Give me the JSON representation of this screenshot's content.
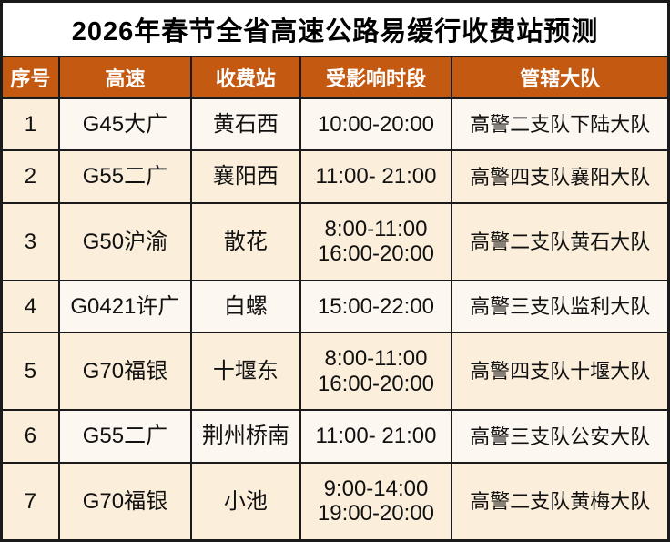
{
  "title": "2026年春节全省高速公路易缓行收费站预测",
  "colors": {
    "header_bg": "#C45911",
    "header_fg": "#FFFFFF",
    "row_cream": "#FBEEDA",
    "row_light": "#FDF7F1",
    "border": "#1A1A1A"
  },
  "table": {
    "headers": {
      "no": "序号",
      "highway": "高速",
      "station": "收费站",
      "time": "受影响时段",
      "brigade": "管辖大队"
    },
    "rows": [
      {
        "no": "1",
        "highway": "G45大广",
        "station": "黄石西",
        "time_lines": [
          "10:00-20:00"
        ],
        "brigade": "高警二支队下陆大队",
        "shade": "light"
      },
      {
        "no": "2",
        "highway": "G55二广",
        "station": "襄阳西",
        "time_lines": [
          "11:00- 21:00"
        ],
        "brigade": "高警四支队襄阳大队",
        "shade": "cream"
      },
      {
        "no": "3",
        "highway": "G50沪渝",
        "station": "散花",
        "time_lines": [
          "8:00-11:00",
          "16:00-20:00"
        ],
        "brigade": "高警二支队黄石大队",
        "shade": "cream"
      },
      {
        "no": "4",
        "highway": "G0421许广",
        "station": "白螺",
        "time_lines": [
          "15:00-22:00"
        ],
        "brigade": "高警三支队监利大队",
        "shade": "light"
      },
      {
        "no": "5",
        "highway": "G70福银",
        "station": "十堰东",
        "time_lines": [
          "8:00-11:00",
          "16:00-20:00"
        ],
        "brigade": "高警四支队十堰大队",
        "shade": "cream"
      },
      {
        "no": "6",
        "highway": "G55二广",
        "station": "荆州桥南",
        "time_lines": [
          "11:00- 21:00"
        ],
        "brigade": "高警三支队公安大队",
        "shade": "light"
      },
      {
        "no": "7",
        "highway": "G70福银",
        "station": "小池",
        "time_lines": [
          "9:00-14:00",
          "19:00-20:00"
        ],
        "brigade": "高警二支队黄梅大队",
        "shade": "cream"
      }
    ]
  }
}
